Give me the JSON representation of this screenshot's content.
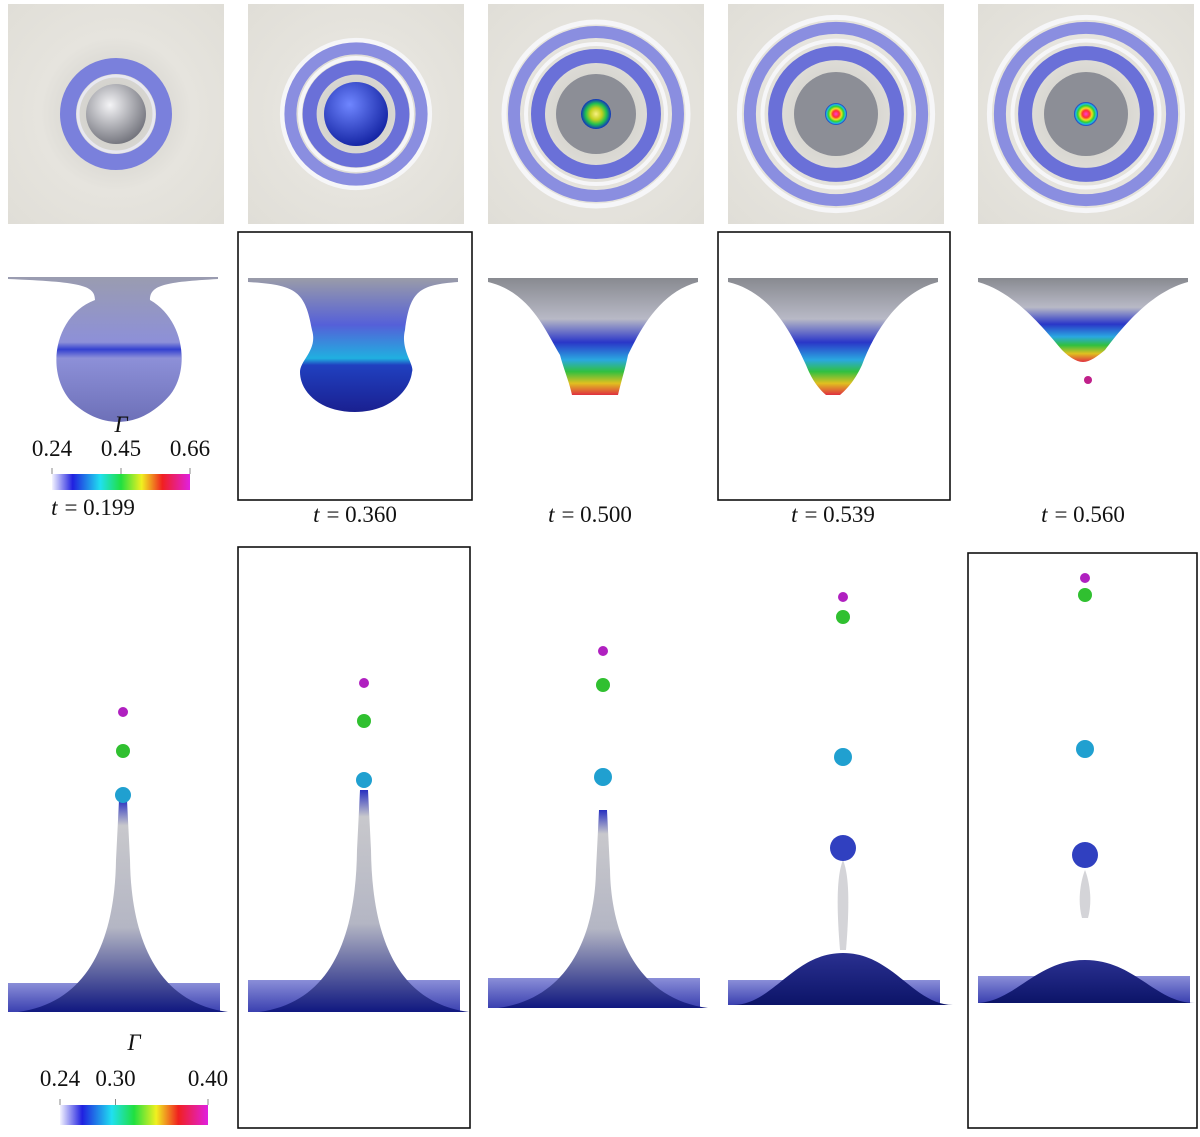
{
  "panels": [
    {
      "time": {
        "symbol": "t",
        "value": "= 0.199"
      }
    },
    {
      "time": {
        "symbol": "t",
        "value": "= 0.360"
      }
    },
    {
      "time": {
        "symbol": "t",
        "value": "= 0.500"
      }
    },
    {
      "time": {
        "symbol": "t",
        "value": "= 0.539"
      }
    },
    {
      "time": {
        "symbol": "t",
        "value": "= 0.560"
      }
    }
  ],
  "colorbars": [
    {
      "symbol": "Γ",
      "range": [
        0.24,
        0.66
      ],
      "ticks": [
        0.24,
        0.45,
        0.66
      ]
    },
    {
      "symbol": "Γ",
      "range": [
        0.24,
        0.4
      ],
      "ticks": [
        0.24,
        {
          "value": 0.3,
          "label": "0.30"
        },
        {
          "value": 0.4,
          "label": "0.40"
        }
      ]
    }
  ]
}
